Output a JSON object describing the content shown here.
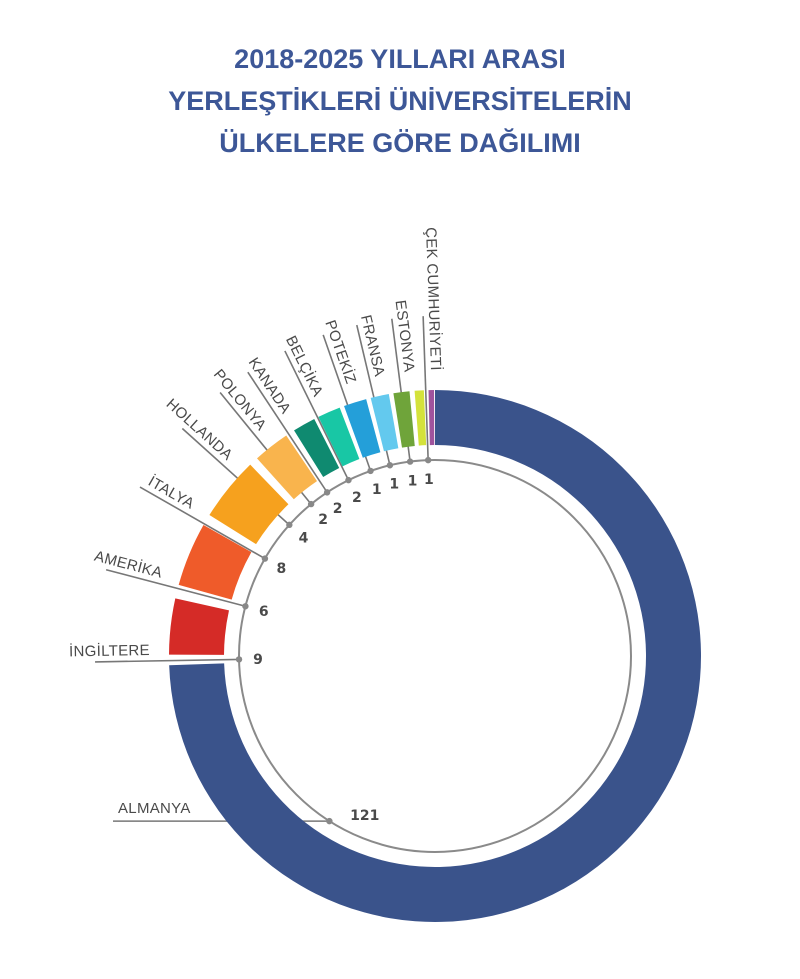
{
  "title": {
    "lines": [
      "2018-2025 YILLARI ARASI",
      "YERLEŞTİKLERİ ÜNİVERSİTELERİN",
      "ÜLKELERE GÖRE DAĞILIMI"
    ],
    "color": "#3d5797"
  },
  "chart_data": {
    "type": "radial-bar",
    "title": "2018-2025 YILLARI ARASI YERLEŞTİKLERİ ÜNİVERSİTELERİN ÜLKELERE GÖRE DAĞILIMI",
    "categories": [
      "ALMANYA",
      "İNGİLTERE",
      "AMERİKA",
      "İTALYA",
      "HOLLANDA",
      "POLONYA",
      "KANADA",
      "BELÇİKA",
      "POTEKİZ",
      "FRANSA",
      "ESTONYA",
      "ÇEK CUMHURİYETİ"
    ],
    "values": [
      121,
      9,
      6,
      8,
      4,
      2,
      2,
      2,
      1,
      1,
      1,
      1
    ],
    "value_labels": [
      "121",
      "9",
      "6",
      "8",
      "4",
      "2",
      "2",
      "2",
      "1",
      "1",
      "1",
      "1"
    ],
    "colors": [
      "#3a538b",
      "#d52b27",
      "#ef5b2a",
      "#f6a11e",
      "#f9b44d",
      "#0f8a70",
      "#18c7a5",
      "#249fd9",
      "#63c9ee",
      "#6fa43a",
      "#d4e23b",
      "#a0539d"
    ],
    "grid": false,
    "legend": "none"
  }
}
